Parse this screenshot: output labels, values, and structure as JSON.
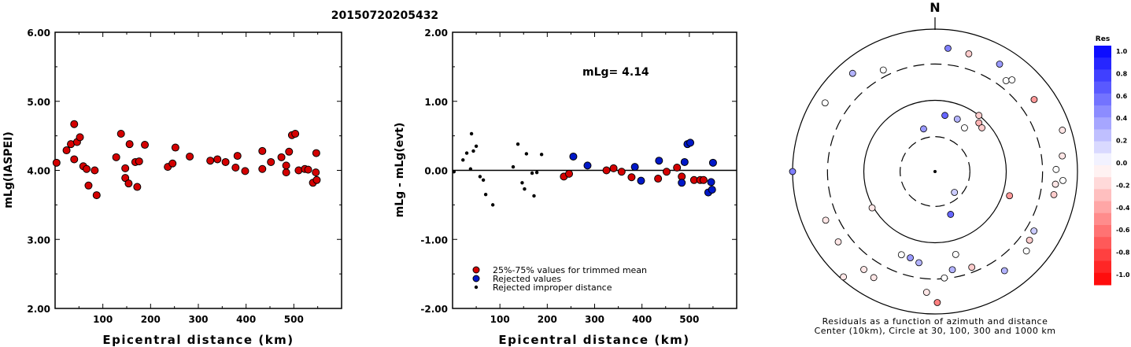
{
  "title": "20150720205432",
  "chart_data": [
    {
      "type": "scatter",
      "xlabel": "Epicentral distance (km)",
      "ylabel": "mLg(IASPEI)",
      "xlim": [
        0,
        600
      ],
      "ylim": [
        2.0,
        6.0
      ],
      "x_ticks": [
        "100",
        "200",
        "300",
        "400",
        "500"
      ],
      "y_ticks": [
        "2.00",
        "3.00",
        "4.00",
        "5.00",
        "6.00"
      ],
      "grid": false,
      "points": [
        [
          3,
          4.11
        ],
        [
          24,
          4.29
        ],
        [
          33,
          4.38
        ],
        [
          40,
          4.16
        ],
        [
          40,
          4.67
        ],
        [
          46,
          4.41
        ],
        [
          52,
          4.48
        ],
        [
          59,
          4.06
        ],
        [
          66,
          4.02
        ],
        [
          70,
          3.78
        ],
        [
          83,
          4.0
        ],
        [
          87,
          3.64
        ],
        [
          128,
          4.19
        ],
        [
          138,
          4.53
        ],
        [
          147,
          3.89
        ],
        [
          147,
          4.03
        ],
        [
          154,
          3.81
        ],
        [
          156,
          4.38
        ],
        [
          168,
          4.12
        ],
        [
          172,
          3.76
        ],
        [
          176,
          4.13
        ],
        [
          188,
          4.37
        ],
        [
          236,
          4.05
        ],
        [
          246,
          4.1
        ],
        [
          252,
          4.33
        ],
        [
          282,
          4.2
        ],
        [
          325,
          4.14
        ],
        [
          340,
          4.16
        ],
        [
          357,
          4.12
        ],
        [
          378,
          4.04
        ],
        [
          382,
          4.21
        ],
        [
          398,
          3.99
        ],
        [
          434,
          4.28
        ],
        [
          434,
          4.02
        ],
        [
          452,
          4.12
        ],
        [
          474,
          4.19
        ],
        [
          484,
          3.97
        ],
        [
          484,
          4.07
        ],
        [
          490,
          4.27
        ],
        [
          496,
          4.51
        ],
        [
          503,
          4.53
        ],
        [
          510,
          4.0
        ],
        [
          523,
          4.02
        ],
        [
          530,
          4.01
        ],
        [
          540,
          3.82
        ],
        [
          546,
          3.97
        ],
        [
          547,
          4.25
        ],
        [
          548,
          3.86
        ]
      ]
    },
    {
      "type": "scatter",
      "xlabel": "Epicentral distance (km)",
      "ylabel": "mLg - mLg(evt)",
      "xlim": [
        0,
        600
      ],
      "ylim": [
        -2.0,
        2.0
      ],
      "x_ticks": [
        "100",
        "200",
        "300",
        "400",
        "500"
      ],
      "y_ticks": [
        "-2.00",
        "-1.00",
        "0.00",
        "1.00",
        "2.00"
      ],
      "annotation": "mLg= 4.14",
      "reference_line": 0.0,
      "legend": {
        "position": "bottom-left",
        "entries": [
          {
            "label": "25%-75% values for trimmed mean",
            "color": "#d40000"
          },
          {
            "label": "Rejected values",
            "color": "#0018c8"
          },
          {
            "label": "Rejected improper distance",
            "color": "#000000"
          }
        ]
      },
      "series": [
        {
          "name": "25%-75% values for trimmed mean",
          "points": [
            [
              235,
              -0.09
            ],
            [
              246,
              -0.05
            ],
            [
              325,
              0.0
            ],
            [
              340,
              0.03
            ],
            [
              357,
              -0.02
            ],
            [
              378,
              -0.1
            ],
            [
              434,
              -0.12
            ],
            [
              452,
              -0.02
            ],
            [
              474,
              0.04
            ],
            [
              484,
              -0.09
            ],
            [
              510,
              -0.14
            ],
            [
              523,
              -0.14
            ],
            [
              530,
              -0.14
            ]
          ]
        },
        {
          "name": "Rejected values",
          "points": [
            [
              255,
              0.2
            ],
            [
              285,
              0.07
            ],
            [
              385,
              0.05
            ],
            [
              398,
              -0.15
            ],
            [
              436,
              0.14
            ],
            [
              484,
              -0.18
            ],
            [
              490,
              0.12
            ],
            [
              496,
              0.38
            ],
            [
              502,
              0.4
            ],
            [
              540,
              -0.32
            ],
            [
              546,
              -0.17
            ],
            [
              548,
              -0.28
            ],
            [
              550,
              0.11
            ]
          ]
        },
        {
          "name": "Rejected improper distance",
          "points": [
            [
              3,
              -0.02
            ],
            [
              22,
              0.15
            ],
            [
              30,
              0.25
            ],
            [
              38,
              0.02
            ],
            [
              40,
              0.53
            ],
            [
              44,
              0.28
            ],
            [
              50,
              0.35
            ],
            [
              58,
              -0.09
            ],
            [
              65,
              -0.14
            ],
            [
              70,
              -0.35
            ],
            [
              85,
              -0.5
            ],
            [
              128,
              0.05
            ],
            [
              138,
              0.38
            ],
            [
              147,
              -0.18
            ],
            [
              152,
              -0.27
            ],
            [
              156,
              0.24
            ],
            [
              168,
              -0.04
            ],
            [
              172,
              -0.37
            ],
            [
              178,
              -0.03
            ],
            [
              188,
              0.23
            ]
          ]
        }
      ]
    },
    {
      "type": "scatter",
      "subtype": "polar",
      "north_label": "N",
      "caption": [
        "Residuals as a function of azimuth and distance",
        "Center (10km), Circle at 30, 100, 300 and 1000 km"
      ],
      "colorbar": {
        "title": "Res",
        "ticks": [
          "1.0",
          "0.8",
          "0.6",
          "0.4",
          "0.2",
          "0.0",
          "-0.2",
          "-0.4",
          "-0.6",
          "-0.8",
          "-1.0"
        ],
        "max_color": "#0000ff",
        "min_color": "#ff0000"
      },
      "stations": [
        {
          "az": 6,
          "r": 0.87,
          "res": 0.5
        },
        {
          "az": 16,
          "r": 0.86,
          "res": -0.2
        },
        {
          "az": 31,
          "r": 0.88,
          "res": 0.4
        },
        {
          "az": 38,
          "r": 0.81,
          "res": 0.0
        },
        {
          "az": 40,
          "r": 0.84,
          "res": 0.0
        },
        {
          "az": 54,
          "r": 0.86,
          "res": -0.4
        },
        {
          "az": 72,
          "r": 0.94,
          "res": -0.1
        },
        {
          "az": 83,
          "r": 0.9,
          "res": -0.1
        },
        {
          "az": 94,
          "r": 0.9,
          "res": 0.0
        },
        {
          "az": 96,
          "r": 0.85,
          "res": -0.1
        },
        {
          "az": 101,
          "r": 0.85,
          "res": -0.2
        },
        {
          "az": 121,
          "r": 0.81,
          "res": 0.2
        },
        {
          "az": 126,
          "r": 0.82,
          "res": -0.2
        },
        {
          "az": 131,
          "r": 0.85,
          "res": 0.0
        },
        {
          "az": 145,
          "r": 0.85,
          "res": 0.3
        },
        {
          "az": 159,
          "r": 0.72,
          "res": -0.2
        },
        {
          "az": 166,
          "r": 0.6,
          "res": 0.0
        },
        {
          "az": 170,
          "r": 0.7,
          "res": 0.3
        },
        {
          "az": 175,
          "r": 0.75,
          "res": 0.0
        },
        {
          "az": 179,
          "r": 0.92,
          "res": -0.5
        },
        {
          "az": 184,
          "r": 0.85,
          "res": -0.1
        },
        {
          "az": 190,
          "r": 0.65,
          "res": 0.3
        },
        {
          "az": 196,
          "r": 0.63,
          "res": 0.4
        },
        {
          "az": 202,
          "r": 0.63,
          "res": 0.0
        },
        {
          "az": 210,
          "r": 0.86,
          "res": -0.1
        },
        {
          "az": 216,
          "r": 0.85,
          "res": -0.1
        },
        {
          "az": 221,
          "r": 0.98,
          "res": -0.1
        },
        {
          "az": 234,
          "r": 0.84,
          "res": -0.1
        },
        {
          "az": 240,
          "r": 0.51,
          "res": -0.1
        },
        {
          "az": 246,
          "r": 0.84,
          "res": -0.1
        },
        {
          "az": 270,
          "r": 1.0,
          "res": 0.5
        },
        {
          "az": 302,
          "r": 0.91,
          "res": 0.0
        },
        {
          "az": 320,
          "r": 0.9,
          "res": 0.3
        },
        {
          "az": 333,
          "r": 0.8,
          "res": 0.0
        },
        {
          "az": 160,
          "r": 0.32,
          "res": 0.6
        },
        {
          "az": 108,
          "r": 0.55,
          "res": -0.4
        },
        {
          "az": 10,
          "r": 0.4,
          "res": 0.6
        },
        {
          "az": 23,
          "r": 0.4,
          "res": 0.3
        },
        {
          "az": 34,
          "r": 0.37,
          "res": 0.0
        },
        {
          "az": 345,
          "r": 0.31,
          "res": 0.4
        },
        {
          "az": 38,
          "r": 0.5,
          "res": -0.2
        },
        {
          "az": 42,
          "r": 0.46,
          "res": -0.3
        },
        {
          "az": 47,
          "r": 0.45,
          "res": -0.2
        },
        {
          "az": 137,
          "r": 0.2,
          "res": 0.2
        },
        {
          "az": 89,
          "r": 0.85,
          "res": 0.0
        }
      ]
    }
  ]
}
